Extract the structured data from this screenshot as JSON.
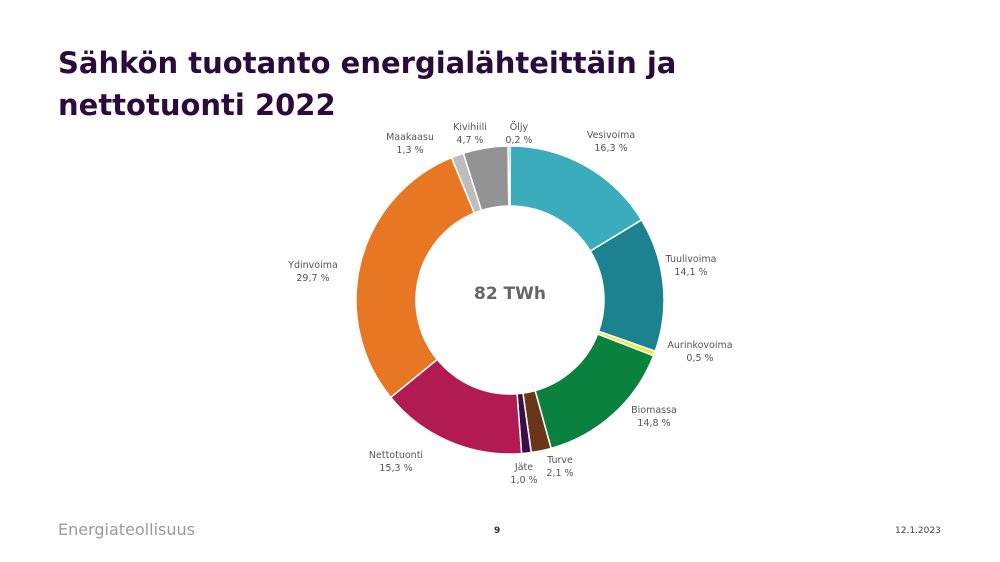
{
  "slide": {
    "title_line1": "Sähkön tuotanto energialähteittäin ja",
    "title_line2": "nettotuonti 2022",
    "logo_text": "Energiateollisuus",
    "page_number": "9",
    "date": "12.1.2023"
  },
  "chart_data": {
    "type": "donut",
    "center_label": "82 TWh",
    "unit": "%",
    "slices": [
      {
        "name": "Vesivoima",
        "value": 16.3,
        "label": "16,3 %",
        "color": "#3aacbc"
      },
      {
        "name": "Tuulivoima",
        "value": 14.1,
        "label": "14,1 %",
        "color": "#1c8290"
      },
      {
        "name": "Aurinkovoima",
        "value": 0.5,
        "label": "0,5 %",
        "color": "#f2e836"
      },
      {
        "name": "Biomassa",
        "value": 14.8,
        "label": "14,8 %",
        "color": "#0b8140"
      },
      {
        "name": "Turve",
        "value": 2.1,
        "label": "2,1 %",
        "color": "#6a3518"
      },
      {
        "name": "Jäte",
        "value": 1.0,
        "label": "1,0 %",
        "color": "#3a0e48"
      },
      {
        "name": "Nettotuonti",
        "value": 15.3,
        "label": "15,3 %",
        "color": "#b21b52"
      },
      {
        "name": "Ydinvoima",
        "value": 29.7,
        "label": "29,7 %",
        "color": "#e77722"
      },
      {
        "name": "Maakaasu",
        "value": 1.3,
        "label": "1,3 %",
        "color": "#bdbdbd"
      },
      {
        "name": "Kivihiili",
        "value": 4.7,
        "label": "4,7 %",
        "color": "#939393"
      },
      {
        "name": "Öljy",
        "value": 0.2,
        "label": "0,2 %",
        "color": "#6b6b6b"
      }
    ]
  }
}
